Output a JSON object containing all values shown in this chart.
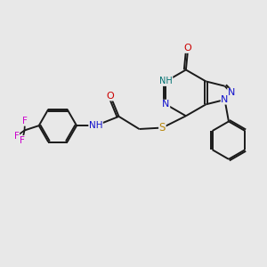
{
  "background_color": "#e8e8e8",
  "bond_color": "#1a1a1a",
  "bond_width": 1.4,
  "figsize": [
    3.0,
    3.0
  ],
  "dpi": 100,
  "colors": {
    "N": "#1010cc",
    "O": "#cc0000",
    "S": "#b8860b",
    "H": "#007070",
    "F": "#cc00cc",
    "C": "#1a1a1a"
  }
}
